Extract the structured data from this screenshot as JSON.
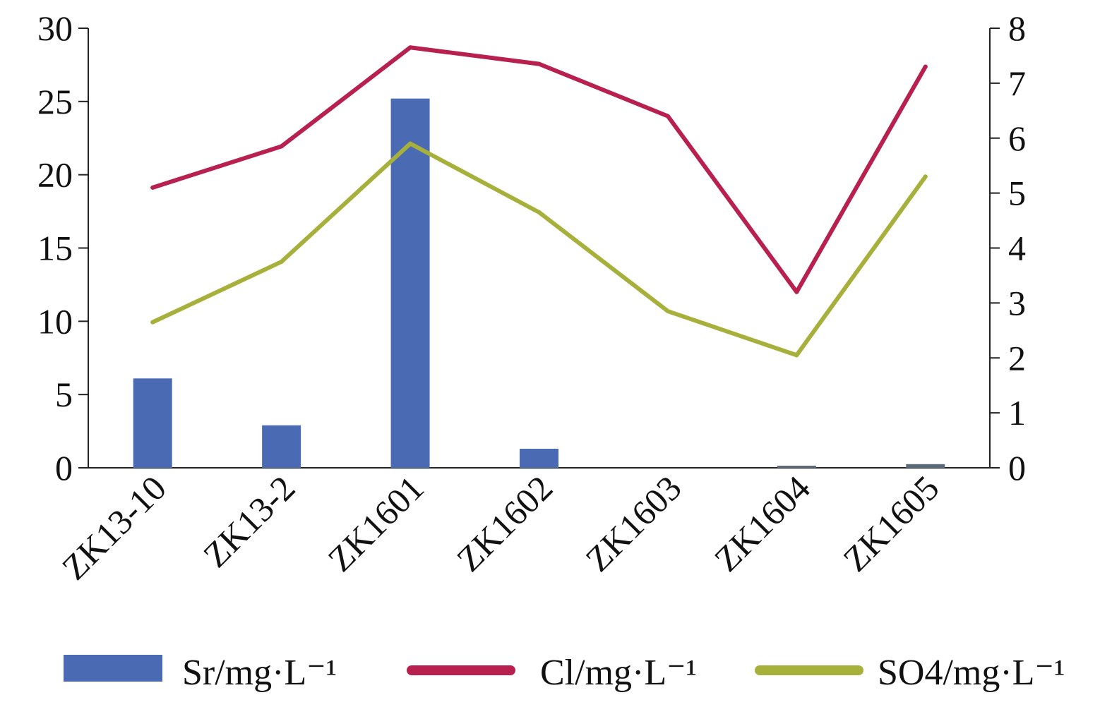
{
  "chart_data": {
    "type": "bar",
    "categories": [
      "ZK13-10",
      "ZK13-2",
      "ZK1601",
      "ZK1602",
      "ZK1603",
      "ZK1604",
      "ZK1605"
    ],
    "y_left": {
      "ylim": [
        0,
        30
      ],
      "ticks": [
        0,
        5,
        10,
        15,
        20,
        25,
        30
      ]
    },
    "y_right": {
      "ylim": [
        0,
        8
      ],
      "ticks": [
        0,
        1,
        2,
        3,
        4,
        5,
        6,
        7,
        8
      ]
    },
    "series": [
      {
        "name": "Sr/mg·L⁻¹",
        "type": "bar",
        "axis": "left",
        "color": "#4a6bb3",
        "values": [
          6.1,
          2.9,
          25.2,
          1.3,
          0.0,
          0.05,
          0.25
        ]
      },
      {
        "name": "Cl/mg·L⁻¹",
        "type": "line",
        "axis": "right",
        "color": "#b8204f",
        "values": [
          5.1,
          5.85,
          7.65,
          7.35,
          6.4,
          3.2,
          7.3
        ]
      },
      {
        "name": "SO4/mg·L⁻¹",
        "type": "line",
        "axis": "right",
        "color": "#a8b03c",
        "values": [
          2.65,
          3.75,
          5.9,
          4.65,
          2.85,
          2.05,
          5.3
        ]
      }
    ],
    "legend_position": "bottom",
    "grid": false
  }
}
